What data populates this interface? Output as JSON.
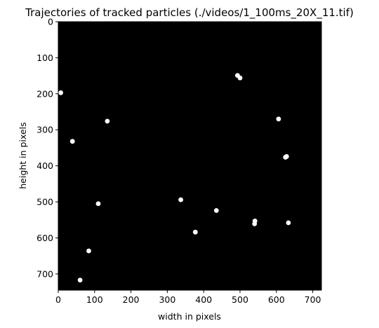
{
  "chart_data": {
    "type": "scatter",
    "title": "Trajectories of tracked particles (./videos/1_100ms_20X_11.tif)",
    "xlabel": "width in pixels",
    "ylabel": "height in pixels",
    "xlim": [
      0,
      724
    ],
    "ylim": [
      745,
      0
    ],
    "y_axis_inverted": true,
    "grid": false,
    "background_color": "#000000",
    "marker_color": "#ffffff",
    "xticks": [
      0,
      100,
      200,
      300,
      400,
      500,
      600,
      700
    ],
    "yticks": [
      0,
      100,
      200,
      300,
      400,
      500,
      600,
      700
    ],
    "points": [
      {
        "x": 7,
        "y": 197
      },
      {
        "x": 135,
        "y": 276
      },
      {
        "x": 39,
        "y": 332
      },
      {
        "x": 110,
        "y": 505
      },
      {
        "x": 84,
        "y": 636
      },
      {
        "x": 60,
        "y": 717
      },
      {
        "x": 337,
        "y": 494
      },
      {
        "x": 377,
        "y": 584
      },
      {
        "x": 435,
        "y": 524
      },
      {
        "x": 493,
        "y": 149
      },
      {
        "x": 500,
        "y": 156
      },
      {
        "x": 606,
        "y": 270
      },
      {
        "x": 625,
        "y": 376
      },
      {
        "x": 628,
        "y": 374
      },
      {
        "x": 541,
        "y": 553
      },
      {
        "x": 540,
        "y": 561
      },
      {
        "x": 633,
        "y": 558
      }
    ]
  }
}
